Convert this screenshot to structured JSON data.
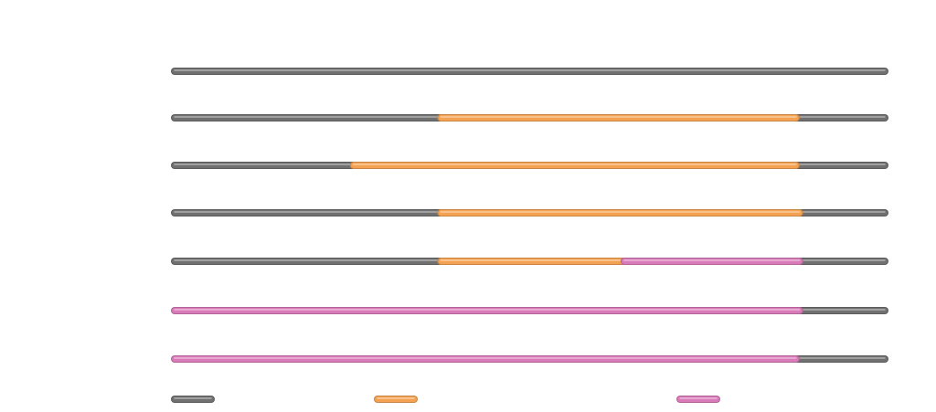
{
  "colors": {
    "gray": "#707070",
    "orange": "#f4a252",
    "pink": "#d97ab9"
  },
  "diagram": {
    "type": "horizontal-track-segments",
    "x_range": [
      0,
      100
    ],
    "tracks": [
      {
        "segments": [
          {
            "from": 0,
            "to": 100,
            "color": "gray"
          }
        ]
      },
      {
        "segments": [
          {
            "from": 0,
            "to": 37.5,
            "color": "gray"
          },
          {
            "from": 37.5,
            "to": 87.5,
            "color": "orange"
          },
          {
            "from": 87.5,
            "to": 100,
            "color": "gray"
          }
        ]
      },
      {
        "segments": [
          {
            "from": 0,
            "to": 25.2,
            "color": "gray"
          },
          {
            "from": 25.2,
            "to": 87.5,
            "color": "orange"
          },
          {
            "from": 87.5,
            "to": 100,
            "color": "gray"
          }
        ]
      },
      {
        "segments": [
          {
            "from": 0,
            "to": 37.5,
            "color": "gray"
          },
          {
            "from": 37.5,
            "to": 88.0,
            "color": "orange"
          },
          {
            "from": 88.0,
            "to": 100,
            "color": "gray"
          }
        ]
      },
      {
        "segments": [
          {
            "from": 0,
            "to": 37.5,
            "color": "gray"
          },
          {
            "from": 37.5,
            "to": 63.3,
            "color": "orange"
          },
          {
            "from": 63.3,
            "to": 88.0,
            "color": "pink"
          },
          {
            "from": 88.0,
            "to": 100,
            "color": "gray"
          }
        ]
      },
      {
        "segments": [
          {
            "from": 0,
            "to": 88.0,
            "color": "pink"
          },
          {
            "from": 88.0,
            "to": 100,
            "color": "gray"
          }
        ]
      },
      {
        "segments": [
          {
            "from": 0,
            "to": 87.5,
            "color": "pink"
          },
          {
            "from": 87.5,
            "to": 100,
            "color": "gray"
          }
        ]
      }
    ],
    "legend": [
      {
        "color": "gray",
        "label": ""
      },
      {
        "color": "orange",
        "label": ""
      },
      {
        "color": "pink",
        "label": ""
      }
    ]
  }
}
